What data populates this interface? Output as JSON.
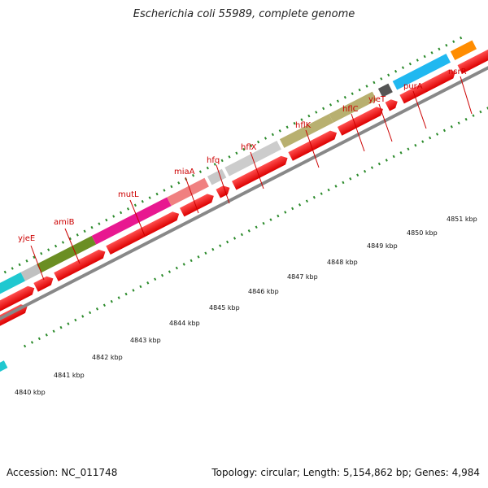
{
  "title": "Escherichia coli 55989, complete genome",
  "footer": {
    "accession": "Accession: NC_011748",
    "summary": "Topology: circular; Length: 5,154,862 bp; Genes: 4,984"
  },
  "genes": [
    {
      "name": "yjeE"
    },
    {
      "name": "amiB"
    },
    {
      "name": "mutL"
    },
    {
      "name": "miaA"
    },
    {
      "name": "hfq"
    },
    {
      "name": "hflX"
    },
    {
      "name": "hflK"
    },
    {
      "name": "hflC"
    },
    {
      "name": "yjeT"
    },
    {
      "name": "purA"
    },
    {
      "name": "nsrR"
    }
  ],
  "scale_labels": [
    "4840 kbp",
    "4841 kbp",
    "4842 kbp",
    "4843 kbp",
    "4844 kbp",
    "4845 kbp",
    "4846 kbp",
    "4847 kbp",
    "4848 kbp",
    "4849 kbp",
    "4850 kbp",
    "4851 kbp"
  ],
  "colors": {
    "cds": "#ff0000",
    "backbone": "#888888",
    "tick": "#2a8a2a",
    "label": "#cc0000"
  }
}
